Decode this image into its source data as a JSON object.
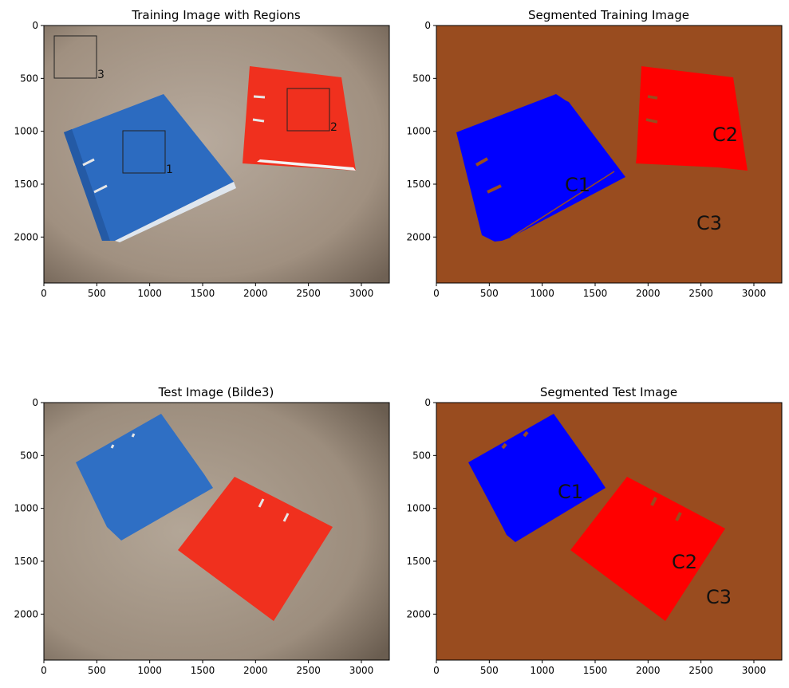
{
  "panels": {
    "training": {
      "title": "Training Image with Regions",
      "region_labels": [
        "1",
        "2",
        "3"
      ]
    },
    "seg_training": {
      "title": "Segmented Training Image",
      "cluster_labels": [
        "C1",
        "C2",
        "C3"
      ]
    },
    "test": {
      "title": "Test Image (Bilde3)"
    },
    "seg_test": {
      "title": "Segmented Test Image",
      "cluster_labels": [
        "C1",
        "C2",
        "C3"
      ]
    }
  },
  "axes": {
    "x_ticks": [
      "0",
      "500",
      "1000",
      "1500",
      "2000",
      "2500",
      "3000"
    ],
    "y_ticks": [
      "0",
      "500",
      "1000",
      "1500",
      "2000"
    ]
  },
  "colors": {
    "segment_blue": "#0000ff",
    "segment_red": "#ff0000",
    "segment_background": "#994c1f",
    "photo_blue": "#2f6fc4",
    "photo_red": "#f0301e",
    "photo_floor": "#a89888"
  }
}
